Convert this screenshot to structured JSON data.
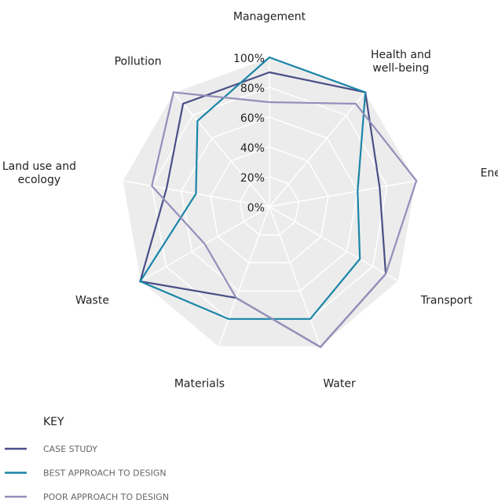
{
  "chart_data": {
    "type": "radar",
    "categories": [
      "Management",
      "Health and well-being",
      "Energy",
      "Transport",
      "Water",
      "Materials",
      "Waste",
      "Land use and ecology",
      "Pollution"
    ],
    "series": [
      {
        "name": "CASE STUDY",
        "color": "#4a4f86",
        "values": [
          90,
          100,
          75,
          90,
          100,
          65,
          100,
          70,
          90
        ]
      },
      {
        "name": "BEST APPROACH TO DESIGN",
        "color": "#1a85a8",
        "values": [
          100,
          100,
          60,
          70,
          80,
          80,
          100,
          50,
          75
        ]
      },
      {
        "name": "POOR APPROACH TO DESIGN",
        "color": "#928fba",
        "values": [
          70,
          90,
          100,
          90,
          100,
          65,
          50,
          80,
          100
        ]
      }
    ],
    "ylim": [
      0,
      100
    ],
    "yticks": [
      {
        "value": 0,
        "label": "0%"
      },
      {
        "value": 20,
        "label": "20%"
      },
      {
        "value": 40,
        "label": "40%"
      },
      {
        "value": 60,
        "label": "60%"
      },
      {
        "value": 80,
        "label": "80%"
      },
      {
        "value": 100,
        "label": "100%"
      }
    ],
    "legend_title": "KEY"
  }
}
